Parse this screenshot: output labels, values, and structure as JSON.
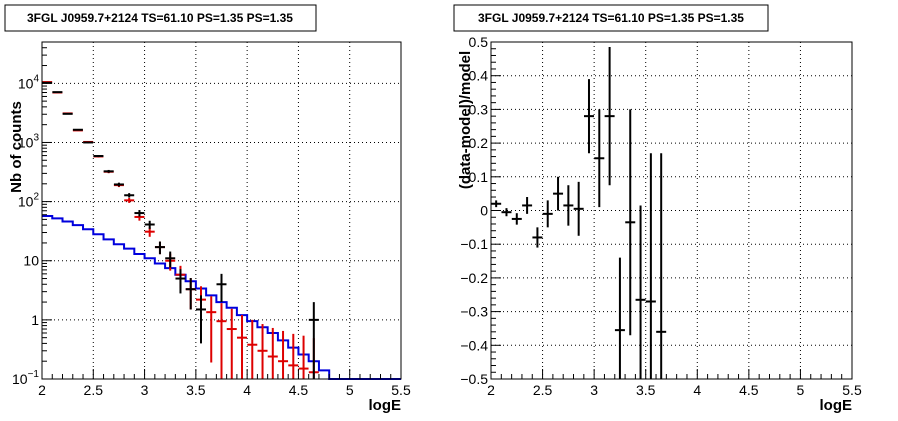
{
  "chart_data": [
    {
      "type": "scatter",
      "title": "3FGL J0959.7+2124 TS=61.10 PS=1.35 PS=1.35",
      "xlabel": "logE",
      "ylabel": "Nb of counts",
      "xlim": [
        2,
        5.5
      ],
      "ylim": [
        0.1,
        50000
      ],
      "yscale": "log",
      "grid": true,
      "x_ticks": [
        "2",
        "2.5",
        "3",
        "3.5",
        "4",
        "4.5",
        "5",
        "5.5"
      ],
      "y_ticks": [
        {
          "value": 0.1,
          "base": "10",
          "exp": "−1"
        },
        {
          "value": 1,
          "base": "1",
          "exp": ""
        },
        {
          "value": 10,
          "base": "10",
          "exp": ""
        },
        {
          "value": 100,
          "base": "10",
          "exp": "2"
        },
        {
          "value": 1000,
          "base": "10",
          "exp": "3"
        },
        {
          "value": 10000,
          "base": "10",
          "exp": "4"
        }
      ],
      "series": [
        {
          "color": "#000000",
          "points": [
            {
              "x": 2.05,
              "y": 10200,
              "err": 100
            },
            {
              "x": 2.15,
              "y": 7100,
              "err": 85
            },
            {
              "x": 2.25,
              "y": 3050,
              "err": 55
            },
            {
              "x": 2.35,
              "y": 1640,
              "err": 40
            },
            {
              "x": 2.45,
              "y": 1000,
              "err": 32
            },
            {
              "x": 2.55,
              "y": 590,
              "err": 24
            },
            {
              "x": 2.65,
              "y": 325,
              "err": 18
            },
            {
              "x": 2.75,
              "y": 195,
              "err": 14
            },
            {
              "x": 2.85,
              "y": 128,
              "err": 11
            },
            {
              "x": 2.95,
              "y": 64,
              "err": 8
            },
            {
              "x": 3.05,
              "y": 41,
              "err": 6.4
            },
            {
              "x": 3.15,
              "y": 17,
              "err": 4.1
            },
            {
              "x": 3.25,
              "y": 11,
              "err": 3.3
            },
            {
              "x": 3.35,
              "y": 5,
              "err": 2.2
            },
            {
              "x": 3.45,
              "y": 3.3,
              "err": 1.8
            },
            {
              "x": 3.55,
              "y": 1.5,
              "err": 1.1
            },
            {
              "x": 3.75,
              "y": 4,
              "err": 2.0
            },
            {
              "x": 4.65,
              "y": 1,
              "err": 1.0
            }
          ]
        },
        {
          "color": "#dd0000",
          "points": [
            {
              "x": 2.05,
              "y": 10500,
              "err": 100
            },
            {
              "x": 2.15,
              "y": 7000,
              "err": 80
            },
            {
              "x": 2.25,
              "y": 3100,
              "err": 55
            },
            {
              "x": 2.35,
              "y": 1600,
              "err": 40
            },
            {
              "x": 2.45,
              "y": 1020,
              "err": 32
            },
            {
              "x": 2.55,
              "y": 580,
              "err": 24
            },
            {
              "x": 2.65,
              "y": 320,
              "err": 18
            },
            {
              "x": 2.75,
              "y": 190,
              "err": 14
            },
            {
              "x": 2.85,
              "y": 105,
              "err": 10
            },
            {
              "x": 2.95,
              "y": 55,
              "err": 7.4
            },
            {
              "x": 3.05,
              "y": 31,
              "err": 5.6
            },
            {
              "x": 3.15,
              "y": 17,
              "err": 4.1
            },
            {
              "x": 3.25,
              "y": 10,
              "err": 3.2
            },
            {
              "x": 3.35,
              "y": 5.8,
              "err": 2.4
            },
            {
              "x": 3.45,
              "y": 3.3,
              "err": 1.8
            },
            {
              "x": 3.55,
              "y": 2.2,
              "err": 1.5
            },
            {
              "x": 3.65,
              "y": 1.35,
              "err": 1.16
            },
            {
              "x": 3.75,
              "y": 0.95,
              "err": 0.97
            },
            {
              "x": 3.85,
              "y": 0.7,
              "err": 0.84
            },
            {
              "x": 3.95,
              "y": 0.5,
              "err": 0.71
            },
            {
              "x": 4.05,
              "y": 0.38,
              "err": 0.62
            },
            {
              "x": 4.15,
              "y": 0.3,
              "err": 0.55
            },
            {
              "x": 4.25,
              "y": 0.24,
              "err": 0.49
            },
            {
              "x": 4.35,
              "y": 0.2,
              "err": 0.45
            },
            {
              "x": 4.45,
              "y": 0.17,
              "err": 0.41
            },
            {
              "x": 4.55,
              "y": 0.15,
              "err": 0.39
            },
            {
              "x": 4.65,
              "y": 0.13,
              "err": 0.36
            }
          ]
        },
        {
          "color": "#0000dd",
          "step_edges": [
            2.0,
            2.1,
            2.2,
            2.3,
            2.4,
            2.5,
            2.6,
            2.7,
            2.8,
            2.9,
            3.0,
            3.1,
            3.2,
            3.3,
            3.4,
            3.5,
            3.6,
            3.7,
            3.8,
            3.9,
            4.0,
            4.1,
            4.2,
            4.3,
            4.4,
            4.5,
            4.6,
            4.7,
            4.8,
            4.9,
            5.0,
            5.1,
            5.2,
            5.3,
            5.4,
            5.5
          ],
          "step_values": [
            57,
            52,
            46,
            40,
            34,
            28,
            23,
            19,
            16,
            13,
            11,
            9.0,
            7.5,
            5.8,
            4.5,
            3.4,
            2.6,
            2.0,
            1.6,
            1.2,
            0.95,
            0.75,
            0.6,
            0.45,
            0.34,
            0.26,
            0.2,
            0.14,
            0.1,
            0.1,
            0.1,
            0.1,
            0.1,
            0.1,
            0.1
          ]
        }
      ]
    },
    {
      "type": "scatter",
      "title": "3FGL J0959.7+2124 TS=61.10 PS=1.35 PS=1.35",
      "xlabel": "logE",
      "ylabel": "(data-model)/model",
      "xlim": [
        2,
        5.5
      ],
      "ylim": [
        -0.5,
        0.5
      ],
      "grid": true,
      "x_ticks": [
        "2",
        "2.5",
        "3",
        "3.5",
        "4",
        "4.5",
        "5",
        "5.5"
      ],
      "y_ticks": [
        "−0.5",
        "−0.4",
        "−0.3",
        "−0.2",
        "−0.1",
        "0",
        "0.1",
        "0.2",
        "0.3",
        "0.4",
        "0.5"
      ],
      "series": [
        {
          "color": "#000000",
          "points": [
            {
              "x": 2.05,
              "y": 0.02,
              "err": 0.01
            },
            {
              "x": 2.15,
              "y": -0.005,
              "err": 0.012
            },
            {
              "x": 2.25,
              "y": -0.025,
              "err": 0.017
            },
            {
              "x": 2.35,
              "y": 0.015,
              "err": 0.025
            },
            {
              "x": 2.45,
              "y": -0.08,
              "err": 0.03
            },
            {
              "x": 2.55,
              "y": -0.01,
              "err": 0.04
            },
            {
              "x": 2.65,
              "y": 0.05,
              "err": 0.05
            },
            {
              "x": 2.75,
              "y": 0.015,
              "err": 0.06
            },
            {
              "x": 2.85,
              "y": 0.005,
              "err": 0.08
            },
            {
              "x": 2.95,
              "y": 0.28,
              "err": 0.11
            },
            {
              "x": 3.05,
              "y": 0.155,
              "err": 0.145
            },
            {
              "x": 3.15,
              "y": 0.28,
              "err": 0.205
            },
            {
              "x": 3.25,
              "y": -0.355,
              "err": 0.215
            },
            {
              "x": 3.35,
              "y": -0.035,
              "err": 0.335
            },
            {
              "x": 3.45,
              "y": -0.265,
              "err": 0.28
            },
            {
              "x": 3.55,
              "y": -0.27,
              "err": 0.44
            },
            {
              "x": 3.65,
              "y": -0.36,
              "err": 0.53
            }
          ]
        }
      ]
    }
  ]
}
